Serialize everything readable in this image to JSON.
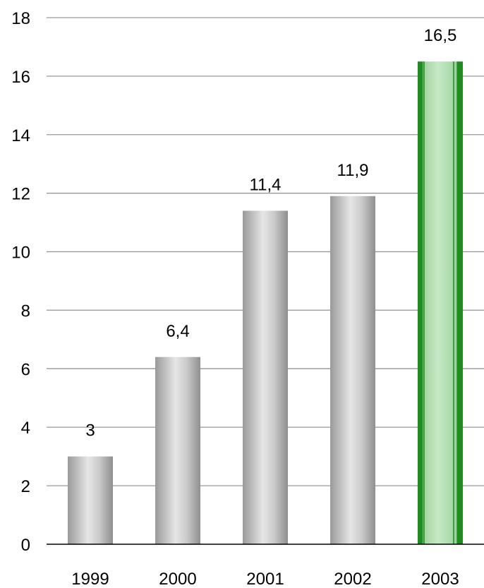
{
  "chart_data": {
    "type": "bar",
    "title": "",
    "xlabel": "",
    "ylabel": "",
    "categories": [
      "1999",
      "2000",
      "2001",
      "2002",
      "2003"
    ],
    "values": [
      3,
      6.4,
      11.4,
      11.9,
      16.5
    ],
    "data_labels": [
      "3",
      "6,4",
      "11,4",
      "11,9",
      "16,5"
    ],
    "ylim": [
      0,
      18
    ],
    "yticks": [
      0,
      2,
      4,
      6,
      8,
      10,
      12,
      14,
      16,
      18
    ],
    "grid": true,
    "legend": "none",
    "colors": {
      "default_bar": "#b3b3b3",
      "highlight_bar": "#2a9a2a",
      "highlight_index": 4,
      "gridline": "#999999"
    }
  }
}
